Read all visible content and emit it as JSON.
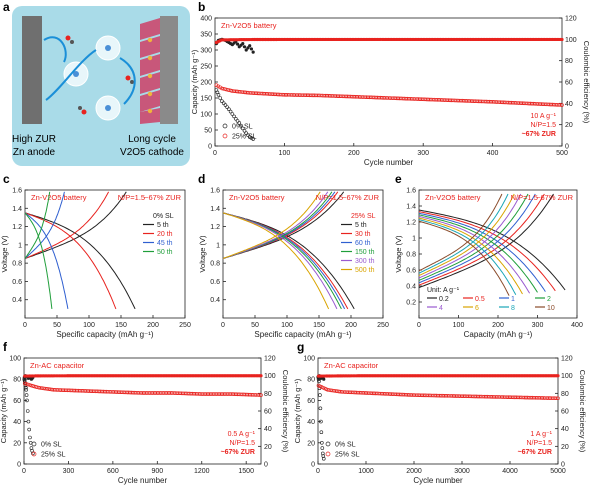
{
  "colors": {
    "red": "#e8231f",
    "black": "#222222",
    "grey": "#8c8c8c",
    "panel_a_bg": "#a9dbe8"
  },
  "panel_labels": {
    "a": "a",
    "b": "b",
    "c": "c",
    "d": "d",
    "e": "e",
    "f": "f",
    "g": "g"
  },
  "schematic": {
    "left_caption_1": "High ZUR",
    "left_caption_2": "Zn anode",
    "right_caption_1": "Long cycle",
    "right_caption_2": "V2O5 cathode"
  },
  "chart_data": [
    {
      "id": "b",
      "type": "scatter",
      "title": "Zn-V2O5 battery",
      "xlabel": "Cycle number",
      "ylabel": "Capacity (mAh g⁻¹)",
      "y2label": "Coulombic efficiency (%)",
      "xlim": [
        0,
        500
      ],
      "ylim": [
        0,
        400
      ],
      "y2lim": [
        0,
        120
      ],
      "xticks": [
        0,
        100,
        200,
        300,
        400,
        500
      ],
      "yticks": [
        0,
        50,
        100,
        150,
        200,
        250,
        300,
        350,
        400
      ],
      "y2ticks": [
        0,
        20,
        40,
        60,
        80,
        100,
        120
      ],
      "legend": [
        "0% SL",
        "25% SL"
      ],
      "annotation": [
        "10 A g⁻¹",
        "N/P=1.5",
        "~67% ZUR"
      ],
      "series": [
        {
          "name": "0% SL",
          "axis": "left",
          "x": [
            2,
            5,
            10,
            15,
            20,
            25,
            30,
            35,
            40,
            45,
            50,
            55
          ],
          "y": [
            175,
            160,
            140,
            128,
            115,
            100,
            85,
            72,
            55,
            40,
            28,
            22
          ]
        },
        {
          "name": "25% SL",
          "axis": "left",
          "x": [
            2,
            10,
            25,
            50,
            100,
            150,
            200,
            250,
            300,
            350,
            400,
            450,
            500
          ],
          "y": [
            190,
            180,
            172,
            166,
            160,
            158,
            154,
            150,
            146,
            142,
            138,
            133,
            128
          ]
        },
        {
          "name": "0% SL CE",
          "axis": "right",
          "x": [
            2,
            5,
            10,
            15,
            20,
            25,
            30,
            35,
            40,
            45,
            50,
            55
          ],
          "y": [
            96,
            99,
            100,
            99,
            97,
            95,
            98,
            93,
            96,
            90,
            94,
            88
          ]
        },
        {
          "name": "25% SL CE",
          "axis": "right",
          "x": [
            2,
            10,
            50,
            100,
            150,
            200,
            250,
            300,
            350,
            400,
            450,
            500
          ],
          "y": [
            97,
            99.5,
            99.8,
            99.9,
            99.9,
            99.9,
            99.9,
            99.9,
            99.9,
            99.9,
            99.9,
            99.9
          ]
        }
      ]
    },
    {
      "id": "c",
      "type": "line",
      "title": "Zn-V2O5 battery",
      "extra_labels": [
        "N/P=1.5",
        "~67% ZUR",
        "0% SL"
      ],
      "xlabel": "Specific capacity (mAh g⁻¹)",
      "ylabel": "Voltage (V)",
      "xlim": [
        0,
        250
      ],
      "ylim": [
        0.2,
        1.6
      ],
      "xticks": [
        0,
        50,
        100,
        150,
        200,
        250
      ],
      "yticks": [
        0.4,
        0.6,
        0.8,
        1.0,
        1.2,
        1.4,
        1.6
      ],
      "series": [
        {
          "name": "5 th",
          "color": "#222222",
          "capacity": 172
        },
        {
          "name": "20 th",
          "color": "#e8231f",
          "capacity": 142
        },
        {
          "name": "45 th",
          "color": "#2f5fd0",
          "capacity": 67
        },
        {
          "name": "50 th",
          "color": "#1f9e3a",
          "capacity": 42
        }
      ]
    },
    {
      "id": "d",
      "type": "line",
      "title": "Zn-V2O5 battery",
      "extra_labels": [
        "N/P=1.5",
        "~67% ZUR",
        "25% SL"
      ],
      "xlabel": "Specific capacity (mAh g⁻¹)",
      "ylabel": "Voltage (V)",
      "xlim": [
        0,
        250
      ],
      "ylim": [
        0.2,
        1.6
      ],
      "xticks": [
        0,
        50,
        100,
        150,
        200,
        250
      ],
      "yticks": [
        0.4,
        0.6,
        0.8,
        1.0,
        1.2,
        1.4,
        1.6
      ],
      "series": [
        {
          "name": "5 th",
          "color": "#222222",
          "capacity": 205
        },
        {
          "name": "30 th",
          "color": "#e8231f",
          "capacity": 195
        },
        {
          "name": "60 th",
          "color": "#2f5fd0",
          "capacity": 190
        },
        {
          "name": "150 th",
          "color": "#1f9e3a",
          "capacity": 185
        },
        {
          "name": "300 th",
          "color": "#9a5bd0",
          "capacity": 178
        },
        {
          "name": "500 th",
          "color": "#d9a400",
          "capacity": 165
        }
      ]
    },
    {
      "id": "e",
      "type": "line",
      "title": "Zn-V2O5 battery",
      "extra_labels": [
        "N/P=1.5",
        "~67% ZUR",
        "Unit: A g⁻¹"
      ],
      "xlabel": "Capacity (mAh g⁻¹)",
      "ylabel": "Voltage (V)",
      "xlim": [
        0,
        400
      ],
      "ylim": [
        0.0,
        1.6
      ],
      "xticks": [
        0,
        100,
        200,
        300,
        400
      ],
      "yticks": [
        0.2,
        0.4,
        0.6,
        0.8,
        1.0,
        1.2,
        1.4,
        1.6
      ],
      "series": [
        {
          "name": "0.2",
          "color": "#222222",
          "capacity": 370
        },
        {
          "name": "0.5",
          "color": "#e8231f",
          "capacity": 345
        },
        {
          "name": "1",
          "color": "#2f5fd0",
          "capacity": 320
        },
        {
          "name": "2",
          "color": "#1f9e3a",
          "capacity": 300
        },
        {
          "name": "4",
          "color": "#9a5bd0",
          "capacity": 280
        },
        {
          "name": "6",
          "color": "#d9a400",
          "capacity": 262
        },
        {
          "name": "8",
          "color": "#1aa6b7",
          "capacity": 245
        },
        {
          "name": "10",
          "color": "#8a4b2a",
          "capacity": 228
        }
      ]
    },
    {
      "id": "f",
      "type": "scatter",
      "title": "Zn-AC capacitor",
      "xlabel": "Cycle number",
      "ylabel": "Capacity (mAh g⁻¹)",
      "y2label": "Coulombic efficiency (%)",
      "xlim": [
        0,
        1600
      ],
      "ylim": [
        0,
        100
      ],
      "y2lim": [
        0,
        120
      ],
      "xticks": [
        0,
        300,
        600,
        900,
        1200,
        1500
      ],
      "yticks": [
        0,
        20,
        40,
        60,
        80,
        100
      ],
      "y2ticks": [
        0,
        20,
        40,
        60,
        80,
        100,
        120
      ],
      "legend": [
        "0% SL",
        "25% SL"
      ],
      "annotation": [
        "0.5 A g⁻¹",
        "N/P=1.5",
        "~67% ZUR"
      ],
      "series": [
        {
          "name": "0% SL",
          "axis": "left",
          "x": [
            2,
            5,
            10,
            15,
            20,
            30,
            40,
            50,
            60
          ],
          "y": [
            80,
            78,
            74,
            70,
            60,
            40,
            25,
            15,
            10
          ]
        },
        {
          "name": "25% SL",
          "axis": "left",
          "x": [
            5,
            50,
            100,
            200,
            400,
            600,
            800,
            1000,
            1200,
            1400,
            1600
          ],
          "y": [
            76,
            74,
            72,
            70,
            69,
            68,
            67,
            67,
            66,
            66,
            65
          ]
        },
        {
          "name": "0% SL CE",
          "axis": "right",
          "x": [
            2,
            10,
            20,
            30,
            40,
            50,
            60
          ],
          "y": [
            98,
            100,
            99,
            97,
            99,
            96,
            98
          ]
        },
        {
          "name": "25% SL CE",
          "axis": "right",
          "x": [
            5,
            100,
            400,
            800,
            1200,
            1600
          ],
          "y": [
            99.5,
            99.8,
            99.9,
            99.9,
            99.9,
            99.9
          ]
        }
      ]
    },
    {
      "id": "g",
      "type": "scatter",
      "title": "Zn-AC capacitor",
      "xlabel": "Cycle number",
      "ylabel": "Capacity (mAh g⁻¹)",
      "y2label": "Coulombic efficiency (%)",
      "xlim": [
        0,
        5000
      ],
      "ylim": [
        0,
        100
      ],
      "y2lim": [
        0,
        120
      ],
      "xticks": [
        0,
        1000,
        2000,
        3000,
        4000,
        5000
      ],
      "yticks": [
        0,
        20,
        40,
        60,
        80,
        100
      ],
      "y2ticks": [
        0,
        20,
        40,
        60,
        80,
        100,
        120
      ],
      "legend": [
        "0% SL",
        "25% SL"
      ],
      "annotation": [
        "1 A g⁻¹",
        "N/P=1.5",
        "~67% ZUR"
      ],
      "series": [
        {
          "name": "0% SL",
          "axis": "left",
          "x": [
            5,
            20,
            40,
            60,
            80,
            100,
            120
          ],
          "y": [
            82,
            78,
            65,
            40,
            20,
            10,
            5
          ]
        },
        {
          "name": "25% SL",
          "axis": "left",
          "x": [
            10,
            200,
            500,
            1000,
            2000,
            3000,
            4000,
            5000
          ],
          "y": [
            74,
            70,
            68,
            67,
            65,
            64,
            63,
            62
          ]
        },
        {
          "name": "0% SL CE",
          "axis": "right",
          "x": [
            5,
            30,
            60,
            90,
            120
          ],
          "y": [
            98,
            100,
            97,
            99,
            96
          ]
        },
        {
          "name": "25% SL CE",
          "axis": "right",
          "x": [
            10,
            500,
            1000,
            2000,
            3000,
            4000,
            5000
          ],
          "y": [
            99.5,
            99.8,
            99.9,
            99.9,
            99.9,
            99.9,
            99.9
          ]
        }
      ]
    }
  ]
}
